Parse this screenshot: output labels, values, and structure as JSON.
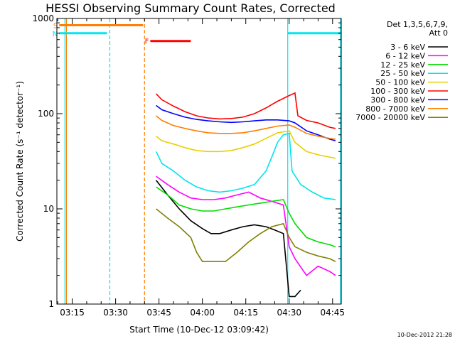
{
  "chart_data": {
    "type": "line",
    "title": "HESSI Observing Summary Count Rates, Corrected",
    "xlabel": "Start Time (10-Dec-12 03:09:42)",
    "ylabel": "Corrected Count Rate (s⁻¹ detector⁻¹)",
    "yscale": "log",
    "ylim": [
      1,
      1000
    ],
    "xlim_minutes": [
      189.7,
      288
    ],
    "x_tick_labels": [
      "03:15",
      "03:30",
      "03:45",
      "04:00",
      "04:15",
      "04:30",
      "04:45"
    ],
    "x_tick_minutes": [
      195,
      210,
      225,
      240,
      255,
      270,
      285
    ],
    "y_tick_labels": [
      "1",
      "10",
      "100",
      "1000"
    ],
    "y_tick_values": [
      1,
      10,
      100,
      1000
    ],
    "legend_header": [
      "Det 1,3,5,6,7,9,",
      "Att 0"
    ],
    "legend_placement": "right",
    "timestamp": "10-Dec-2012 21:28",
    "series": [
      {
        "name": "3 - 6 keV",
        "color": "#000000",
        "points": [
          [
            224,
            20
          ],
          [
            228,
            14
          ],
          [
            232,
            10
          ],
          [
            236,
            7.5
          ],
          [
            240,
            6.2
          ],
          [
            243,
            5.5
          ],
          [
            246,
            5.5
          ],
          [
            250,
            6
          ],
          [
            254,
            6.5
          ],
          [
            258,
            6.8
          ],
          [
            262,
            6.5
          ],
          [
            265,
            6
          ],
          [
            268,
            5.5
          ],
          [
            270,
            1.2
          ],
          [
            272,
            1.2
          ],
          [
            274,
            1.4
          ]
        ]
      },
      {
        "name": "6 - 12 keV",
        "color": "#ff00ff",
        "points": [
          [
            224,
            22
          ],
          [
            228,
            18
          ],
          [
            232,
            15
          ],
          [
            236,
            13
          ],
          [
            240,
            12.5
          ],
          [
            244,
            12.5
          ],
          [
            248,
            13
          ],
          [
            252,
            14
          ],
          [
            256,
            15
          ],
          [
            260,
            13
          ],
          [
            264,
            12
          ],
          [
            268,
            11
          ],
          [
            270,
            4
          ],
          [
            272,
            3
          ],
          [
            276,
            2
          ],
          [
            280,
            2.5
          ],
          [
            284,
            2.2
          ],
          [
            286,
            2
          ]
        ]
      },
      {
        "name": "12 - 25 keV",
        "color": "#00dd00",
        "points": [
          [
            224,
            17
          ],
          [
            228,
            14
          ],
          [
            232,
            11
          ],
          [
            236,
            10
          ],
          [
            240,
            9.5
          ],
          [
            244,
            9.5
          ],
          [
            248,
            10
          ],
          [
            252,
            10.5
          ],
          [
            256,
            11
          ],
          [
            260,
            11.5
          ],
          [
            264,
            12
          ],
          [
            268,
            12.5
          ],
          [
            270,
            9
          ],
          [
            272,
            7
          ],
          [
            276,
            5
          ],
          [
            280,
            4.5
          ],
          [
            284,
            4.2
          ],
          [
            286,
            4
          ]
        ]
      },
      {
        "name": "25 - 50 keV",
        "color": "#00e5ee",
        "points": [
          [
            224,
            40
          ],
          [
            226,
            30
          ],
          [
            230,
            25
          ],
          [
            234,
            20
          ],
          [
            238,
            17
          ],
          [
            242,
            15.5
          ],
          [
            246,
            15
          ],
          [
            250,
            15.5
          ],
          [
            254,
            16.5
          ],
          [
            258,
            18
          ],
          [
            262,
            25
          ],
          [
            264,
            35
          ],
          [
            266,
            50
          ],
          [
            268,
            60
          ],
          [
            270,
            62
          ],
          [
            271,
            25
          ],
          [
            274,
            18
          ],
          [
            278,
            15
          ],
          [
            282,
            13
          ],
          [
            286,
            12.5
          ]
        ]
      },
      {
        "name": "50 - 100 keV",
        "color": "#e8d000",
        "points": [
          [
            224,
            58
          ],
          [
            226,
            52
          ],
          [
            230,
            48
          ],
          [
            234,
            44
          ],
          [
            238,
            41
          ],
          [
            242,
            40
          ],
          [
            246,
            40
          ],
          [
            250,
            41
          ],
          [
            254,
            44
          ],
          [
            258,
            48
          ],
          [
            262,
            55
          ],
          [
            266,
            63
          ],
          [
            270,
            66
          ],
          [
            272,
            50
          ],
          [
            276,
            40
          ],
          [
            280,
            37
          ],
          [
            284,
            35
          ],
          [
            286,
            34
          ]
        ]
      },
      {
        "name": "100 - 300 keV",
        "color": "#ff0000",
        "points": [
          [
            224,
            162
          ],
          [
            226,
            140
          ],
          [
            230,
            120
          ],
          [
            234,
            105
          ],
          [
            238,
            95
          ],
          [
            242,
            90
          ],
          [
            246,
            88
          ],
          [
            250,
            89
          ],
          [
            254,
            92
          ],
          [
            258,
            100
          ],
          [
            262,
            115
          ],
          [
            266,
            135
          ],
          [
            270,
            155
          ],
          [
            272,
            165
          ],
          [
            273,
            95
          ],
          [
            276,
            85
          ],
          [
            280,
            80
          ],
          [
            284,
            72
          ],
          [
            286,
            70
          ]
        ]
      },
      {
        "name": "300 - 800 keV",
        "color": "#0000ff",
        "points": [
          [
            224,
            122
          ],
          [
            226,
            110
          ],
          [
            230,
            100
          ],
          [
            234,
            92
          ],
          [
            238,
            87
          ],
          [
            242,
            84
          ],
          [
            246,
            82
          ],
          [
            250,
            81
          ],
          [
            254,
            82
          ],
          [
            258,
            84
          ],
          [
            262,
            86
          ],
          [
            266,
            86
          ],
          [
            270,
            84
          ],
          [
            272,
            80
          ],
          [
            276,
            66
          ],
          [
            280,
            60
          ],
          [
            284,
            54
          ],
          [
            286,
            52
          ]
        ]
      },
      {
        "name": "800 - 7000 keV",
        "color": "#ff7f00",
        "points": [
          [
            224,
            95
          ],
          [
            226,
            85
          ],
          [
            230,
            75
          ],
          [
            234,
            70
          ],
          [
            238,
            66
          ],
          [
            242,
            63
          ],
          [
            246,
            62
          ],
          [
            250,
            62
          ],
          [
            254,
            63
          ],
          [
            258,
            66
          ],
          [
            262,
            70
          ],
          [
            266,
            74
          ],
          [
            270,
            76
          ],
          [
            272,
            72
          ],
          [
            276,
            62
          ],
          [
            280,
            58
          ],
          [
            284,
            55
          ],
          [
            286,
            54
          ]
        ]
      },
      {
        "name": "7000 - 20000 keV",
        "color": "#808000",
        "points": [
          [
            224,
            10
          ],
          [
            228,
            8
          ],
          [
            232,
            6.5
          ],
          [
            236,
            5
          ],
          [
            238,
            3.5
          ],
          [
            240,
            2.8
          ],
          [
            244,
            2.8
          ],
          [
            248,
            2.8
          ],
          [
            252,
            3.5
          ],
          [
            256,
            4.5
          ],
          [
            260,
            5.5
          ],
          [
            264,
            6.5
          ],
          [
            268,
            7
          ],
          [
            270,
            5
          ],
          [
            272,
            4
          ],
          [
            276,
            3.5
          ],
          [
            280,
            3.2
          ],
          [
            284,
            3
          ],
          [
            286,
            2.8
          ]
        ]
      }
    ],
    "flags": [
      {
        "label": "S",
        "color": "#ff7f00",
        "x_start_minutes": 190.5,
        "x_end_minutes": 219.5,
        "level": 850
      },
      {
        "label": "N",
        "color": "#00e5ee",
        "x_start_minutes": 190.5,
        "x_end_minutes": 207,
        "level": 700
      },
      {
        "label": "F",
        "color": "#ff0000",
        "x_start_minutes": 222,
        "x_end_minutes": 236,
        "level": 580
      },
      {
        "label": "",
        "color": "#00e5ee",
        "x_start_minutes": 269.5,
        "x_end_minutes": 288,
        "level": 700
      }
    ],
    "vertical_markers": [
      {
        "x_minutes": 193,
        "color": "#ff7f00",
        "style": "solid"
      },
      {
        "x_minutes": 192.5,
        "color": "#00e5ee",
        "style": "solid"
      },
      {
        "x_minutes": 208,
        "color": "#00e5ee",
        "style": "dashed"
      },
      {
        "x_minutes": 220,
        "color": "#ff7f00",
        "style": "dashed"
      },
      {
        "x_minutes": 269.5,
        "color": "#00e5ee",
        "style": "solid"
      },
      {
        "x_minutes": 288,
        "color": "#00e5ee",
        "style": "solid"
      }
    ]
  }
}
